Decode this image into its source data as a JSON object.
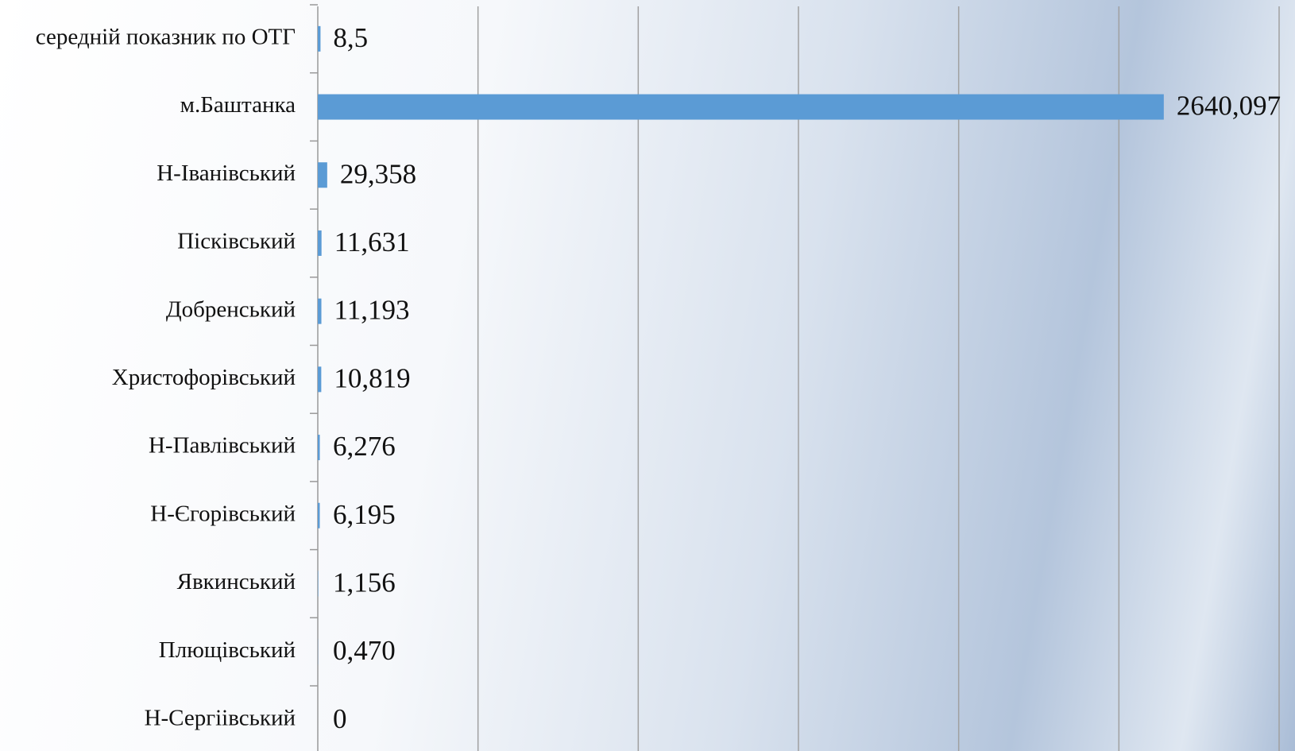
{
  "chart_data": {
    "type": "hbar",
    "categories": [
      "середній показник по ОТГ",
      "м.Баштанка",
      "Н-Іванівський",
      "Пісківський",
      "Добренський",
      "Христофорівський",
      "Н-Павлівський",
      "Н-Єгорівський",
      "Явкинський",
      "Плющівський",
      "Н-Сергіівський"
    ],
    "values": [
      8.5,
      2640.097,
      29.358,
      11.631,
      11.193,
      10.819,
      6.276,
      6.195,
      1.156,
      0.47,
      0
    ],
    "value_labels": [
      "8,5",
      "2640,097",
      "29,358",
      "11,631",
      "11,193",
      "10,819",
      "6,276",
      "6,195",
      "1,156",
      "0,470",
      "0"
    ],
    "color": "#5b9bd5",
    "xlim": [
      0,
      3000
    ],
    "xticks": [
      0,
      500,
      1000,
      1500,
      2000,
      2500,
      3000
    ],
    "grid": true,
    "xtick_labels": false
  }
}
